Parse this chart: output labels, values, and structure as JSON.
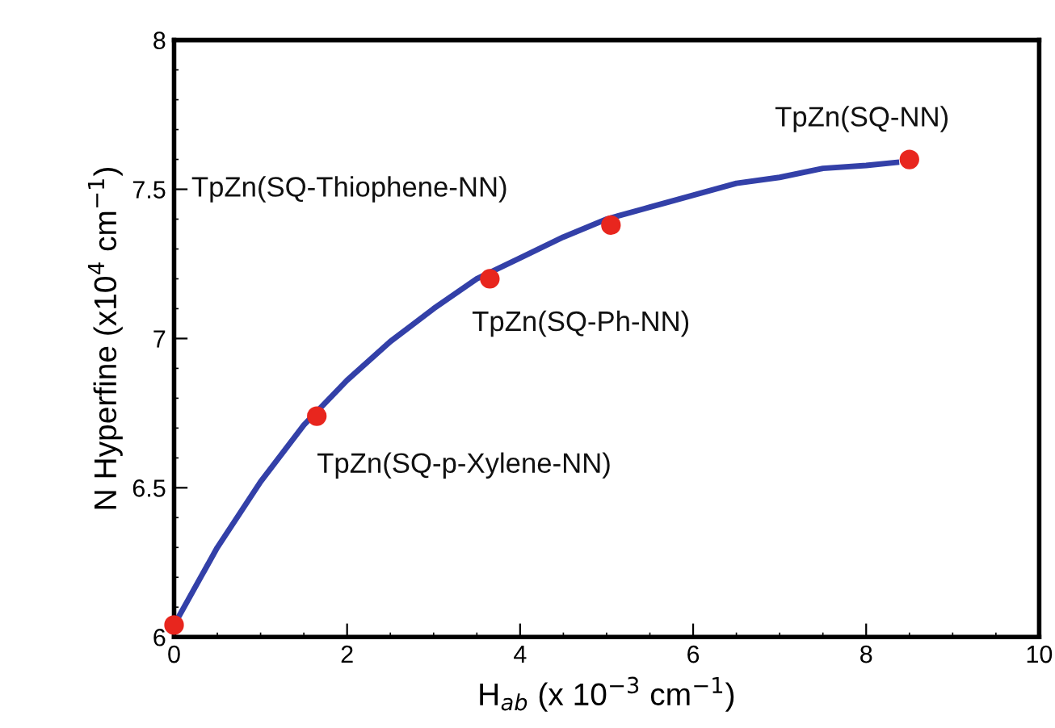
{
  "chart_data": {
    "type": "line",
    "xlabel": "H$_{ab}$ (x 10$^{−3}$ cm$^{−1}$)",
    "ylabel": "N Hyperfine (x10$^{4}$ cm$^{−1}$)",
    "x": [
      0,
      1.65,
      3.65,
      5.05,
      8.5
    ],
    "series": [
      {
        "color": "#3340a8",
        "marker": "none",
        "x": [
          0,
          0.5,
          1,
          1.5,
          2,
          2.5,
          3,
          3.5,
          4,
          4.5,
          5,
          5.5,
          6,
          6.5,
          7,
          7.5,
          8,
          8.35
        ],
        "values": [
          6.04,
          6.3,
          6.52,
          6.71,
          6.86,
          6.99,
          7.1,
          7.2,
          7.27,
          7.34,
          7.4,
          7.44,
          7.48,
          7.52,
          7.54,
          7.57,
          7.58,
          7.59
        ]
      },
      {
        "type": "scatter",
        "marker": "circle",
        "color": "#e8261e",
        "values": [
          6.04,
          6.74,
          7.2,
          7.38,
          7.6
        ]
      }
    ],
    "annotations": [
      {
        "text": "TpZn(SQ-NN)",
        "x": 8.5,
        "y": 7.6
      },
      "TpZn(SQ-Thiophene-NN)",
      {
        "text": "TpZn(SQ-Ph-NN)",
        "x": 3.65,
        "y": 7.2
      },
      {
        "text": "TpZn(SQ-p-Xylene-NN)",
        "x": 1.65,
        "y": 6.74
      }
    ],
    "xlim": [
      0,
      10
    ],
    "ylim": [
      6,
      8
    ],
    "xticks": [
      0,
      2,
      4,
      6,
      8,
      10
    ],
    "yticks": [
      6,
      6.5,
      7,
      7.5,
      8
    ],
    "grid": false
  }
}
